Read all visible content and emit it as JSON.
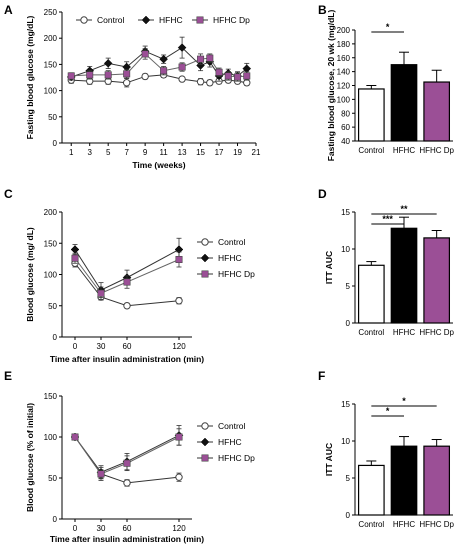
{
  "chart_data": [
    {
      "panel": "A",
      "type": "line",
      "xlabel": "Time (weeks)",
      "ylabel": "Fasting blood glucose (mg/dL)",
      "xlim": [
        0,
        21
      ],
      "ylim": [
        0,
        250
      ],
      "xticks": [
        1,
        3,
        5,
        7,
        9,
        11,
        13,
        15,
        17,
        19,
        21
      ],
      "yticks": [
        0,
        50,
        100,
        150,
        200,
        250
      ],
      "series": [
        {
          "name": "Control",
          "marker": "open-circle",
          "color": "#555555",
          "points": [
            {
              "x": 1,
              "y": 120,
              "err": 6
            },
            {
              "x": 3,
              "y": 118,
              "err": 6
            },
            {
              "x": 5,
              "y": 118,
              "err": 6
            },
            {
              "x": 7,
              "y": 115,
              "err": 8
            },
            {
              "x": 9,
              "y": 127,
              "err": 5
            },
            {
              "x": 11,
              "y": 130,
              "err": 5
            },
            {
              "x": 13,
              "y": 122,
              "err": 4
            },
            {
              "x": 15,
              "y": 117,
              "err": 6
            },
            {
              "x": 16,
              "y": 115,
              "err": 5
            },
            {
              "x": 17,
              "y": 118,
              "err": 5
            },
            {
              "x": 18,
              "y": 120,
              "err": 5
            },
            {
              "x": 19,
              "y": 118,
              "err": 5
            },
            {
              "x": 20,
              "y": 115,
              "err": 5
            }
          ]
        },
        {
          "name": "HFHC",
          "marker": "diamond",
          "color": "#222222",
          "points": [
            {
              "x": 1,
              "y": 126,
              "err": 6
            },
            {
              "x": 3,
              "y": 138,
              "err": 8
            },
            {
              "x": 5,
              "y": 152,
              "err": 10
            },
            {
              "x": 7,
              "y": 145,
              "err": 10
            },
            {
              "x": 9,
              "y": 175,
              "err": 10
            },
            {
              "x": 11,
              "y": 160,
              "err": 8
            },
            {
              "x": 13,
              "y": 182,
              "err": 20
            },
            {
              "x": 15,
              "y": 148,
              "err": 10
            },
            {
              "x": 16,
              "y": 155,
              "err": 10
            },
            {
              "x": 17,
              "y": 128,
              "err": 10
            },
            {
              "x": 18,
              "y": 133,
              "err": 8
            },
            {
              "x": 19,
              "y": 128,
              "err": 8
            },
            {
              "x": 20,
              "y": 142,
              "err": 10
            }
          ]
        },
        {
          "name": "HFHC Dp",
          "marker": "square",
          "color": "#9b4f96",
          "points": [
            {
              "x": 1,
              "y": 128,
              "err": 6
            },
            {
              "x": 3,
              "y": 130,
              "err": 8
            },
            {
              "x": 5,
              "y": 130,
              "err": 8
            },
            {
              "x": 7,
              "y": 132,
              "err": 8
            },
            {
              "x": 9,
              "y": 170,
              "err": 10
            },
            {
              "x": 11,
              "y": 138,
              "err": 8
            },
            {
              "x": 13,
              "y": 145,
              "err": 8
            },
            {
              "x": 15,
              "y": 160,
              "err": 10
            },
            {
              "x": 16,
              "y": 162,
              "err": 8
            },
            {
              "x": 17,
              "y": 135,
              "err": 8
            },
            {
              "x": 18,
              "y": 128,
              "err": 8
            },
            {
              "x": 19,
              "y": 126,
              "err": 8
            },
            {
              "x": 20,
              "y": 128,
              "err": 8
            }
          ]
        }
      ],
      "legend": "top-center"
    },
    {
      "panel": "B",
      "type": "bar",
      "ylabel": "Fasting blood glucose, 20 wk (mg/dL)",
      "ylim": [
        40,
        200
      ],
      "yticks": [
        40,
        60,
        80,
        100,
        120,
        140,
        160,
        180,
        200
      ],
      "categories": [
        "Control",
        "HFHC",
        "HFHC Dp"
      ],
      "values": [
        115,
        150,
        125
      ],
      "errors": [
        5,
        18,
        17
      ],
      "colors": [
        "#ffffff",
        "#000000",
        "#9b4f96"
      ],
      "significance": [
        {
          "from": 0,
          "to": 1,
          "label": "*"
        }
      ]
    },
    {
      "panel": "C",
      "type": "line",
      "xlabel": "Time after insulin administration (min)",
      "ylabel": "Blood glucose (mg/ dL)",
      "xlim": [
        -15,
        135
      ],
      "ylim": [
        0,
        200
      ],
      "xticks": [
        0,
        30,
        60,
        120
      ],
      "yticks": [
        0,
        50,
        100,
        150,
        200
      ],
      "series": [
        {
          "name": "Control",
          "marker": "open-circle",
          "color": "#555555",
          "points": [
            {
              "x": 0,
              "y": 118,
              "err": 6
            },
            {
              "x": 30,
              "y": 64,
              "err": 5
            },
            {
              "x": 60,
              "y": 50,
              "err": 4
            },
            {
              "x": 120,
              "y": 58,
              "err": 5
            }
          ]
        },
        {
          "name": "HFHC",
          "marker": "diamond",
          "color": "#222222",
          "points": [
            {
              "x": 0,
              "y": 140,
              "err": 8
            },
            {
              "x": 30,
              "y": 75,
              "err": 12
            },
            {
              "x": 60,
              "y": 95,
              "err": 12
            },
            {
              "x": 120,
              "y": 140,
              "err": 18
            }
          ]
        },
        {
          "name": "HFHC Dp",
          "marker": "square",
          "color": "#9b4f96",
          "points": [
            {
              "x": 0,
              "y": 126,
              "err": 8
            },
            {
              "x": 30,
              "y": 70,
              "err": 10
            },
            {
              "x": 60,
              "y": 88,
              "err": 10
            },
            {
              "x": 120,
              "y": 124,
              "err": 12
            }
          ]
        }
      ],
      "legend": "right"
    },
    {
      "panel": "D",
      "type": "bar",
      "ylabel": "ITT AUC",
      "ylim": [
        0,
        15
      ],
      "yticks": [
        0,
        5,
        10,
        15
      ],
      "categories": [
        "Control",
        "HFHC",
        "HFHC Dp"
      ],
      "values": [
        7.8,
        12.8,
        11.5
      ],
      "errors": [
        0.5,
        1.5,
        1.0
      ],
      "colors": [
        "#ffffff",
        "#000000",
        "#9b4f96"
      ],
      "significance": [
        {
          "from": 0,
          "to": 1,
          "label": "***"
        },
        {
          "from": 0,
          "to": 2,
          "label": "**"
        }
      ]
    },
    {
      "panel": "E",
      "type": "line",
      "xlabel": "Time after insulin administration (min)",
      "ylabel": "Blood glucose (% of initial)",
      "xlim": [
        -15,
        135
      ],
      "ylim": [
        0,
        150
      ],
      "xticks": [
        0,
        30,
        60,
        120
      ],
      "yticks": [
        0,
        50,
        100,
        150
      ],
      "series": [
        {
          "name": "Control",
          "marker": "open-circle",
          "color": "#555555",
          "points": [
            {
              "x": 0,
              "y": 100,
              "err": 0
            },
            {
              "x": 30,
              "y": 55,
              "err": 5
            },
            {
              "x": 60,
              "y": 44,
              "err": 4
            },
            {
              "x": 120,
              "y": 51,
              "err": 5
            }
          ]
        },
        {
          "name": "HFHC",
          "marker": "diamond",
          "color": "#222222",
          "points": [
            {
              "x": 0,
              "y": 100,
              "err": 0
            },
            {
              "x": 30,
              "y": 57,
              "err": 8
            },
            {
              "x": 60,
              "y": 70,
              "err": 10
            },
            {
              "x": 120,
              "y": 102,
              "err": 12
            }
          ]
        },
        {
          "name": "HFHC Dp",
          "marker": "square",
          "color": "#9b4f96",
          "points": [
            {
              "x": 0,
              "y": 100,
              "err": 0
            },
            {
              "x": 30,
              "y": 55,
              "err": 8
            },
            {
              "x": 60,
              "y": 68,
              "err": 9
            },
            {
              "x": 120,
              "y": 100,
              "err": 10
            }
          ]
        }
      ],
      "legend": "right"
    },
    {
      "panel": "F",
      "type": "bar",
      "ylabel": "ITT AUC",
      "ylim": [
        0,
        15
      ],
      "yticks": [
        0,
        5,
        10,
        15
      ],
      "categories": [
        "Control",
        "HFHC",
        "HFHC Dp"
      ],
      "values": [
        6.7,
        9.3,
        9.3
      ],
      "errors": [
        0.6,
        1.3,
        0.9
      ],
      "colors": [
        "#ffffff",
        "#000000",
        "#9b4f96"
      ],
      "significance": [
        {
          "from": 0,
          "to": 1,
          "label": "*"
        },
        {
          "from": 0,
          "to": 2,
          "label": "*"
        }
      ]
    }
  ]
}
